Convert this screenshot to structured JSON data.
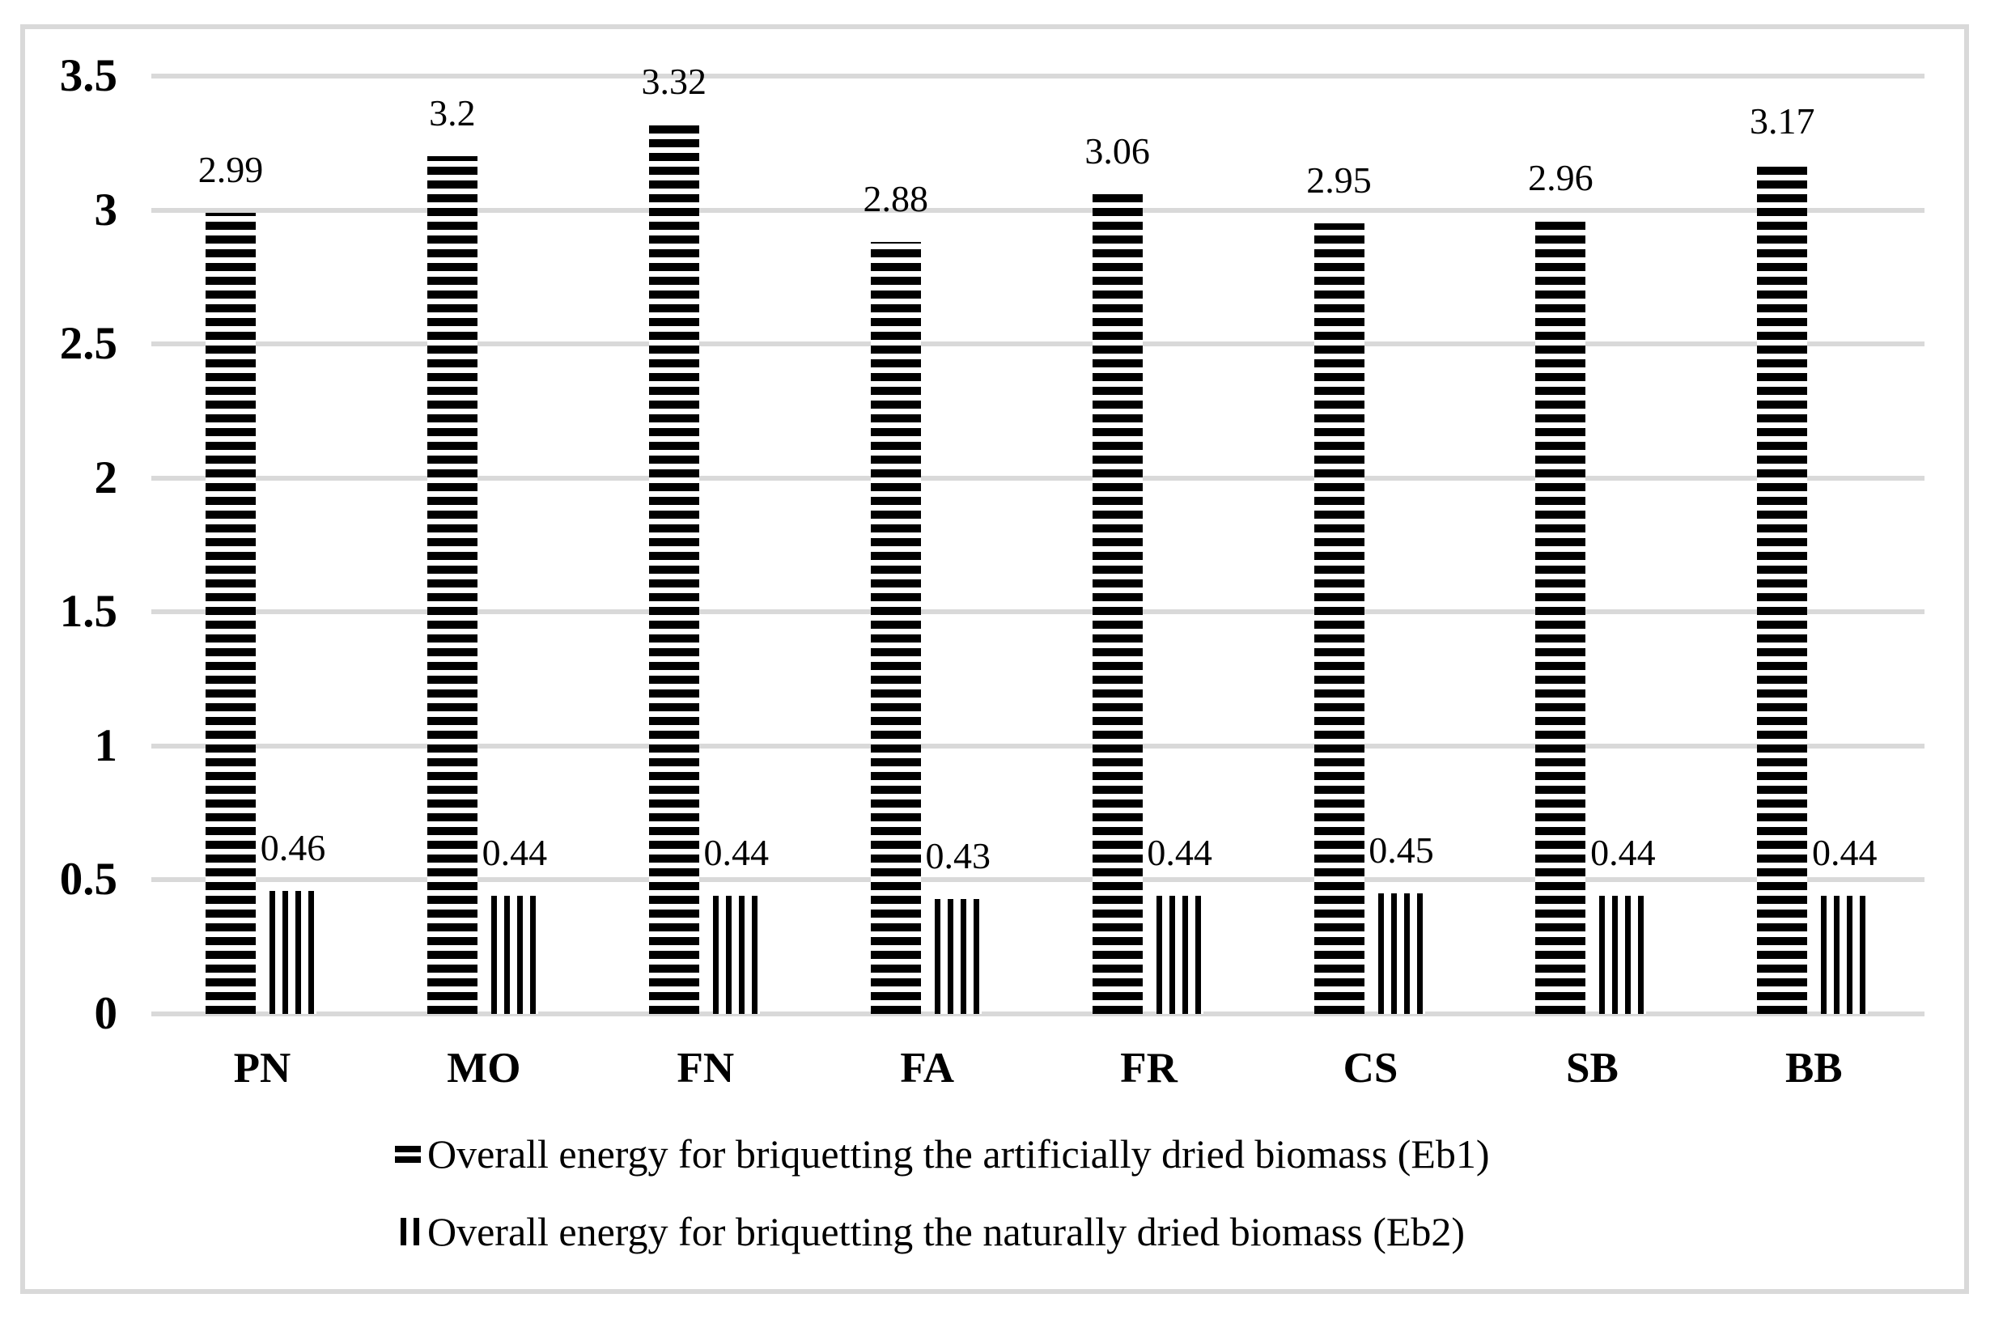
{
  "chart_data": {
    "type": "bar",
    "title": "",
    "xlabel": "",
    "ylabel": "",
    "categories": [
      "PN",
      "MO",
      "FN",
      "FA",
      "FR",
      "CS",
      "SB",
      "BB"
    ],
    "series": [
      {
        "name": "Overall energy for briquetting the artificially dried biomass (Eb1)",
        "pattern": "horizontal-stripes",
        "values": [
          2.99,
          3.2,
          3.32,
          2.88,
          3.06,
          2.95,
          2.96,
          3.17
        ],
        "labels": [
          "2.99",
          "3.2",
          "3.32",
          "2.88",
          "3.06",
          "2.95",
          "2.96",
          "3.17"
        ]
      },
      {
        "name": "Overall energy for briquetting the naturally dried biomass (Eb2)",
        "pattern": "vertical-stripes",
        "values": [
          0.46,
          0.44,
          0.44,
          0.43,
          0.44,
          0.45,
          0.44,
          0.44
        ],
        "labels": [
          "0.46",
          "0.44",
          "0.44",
          "0.43",
          "0.44",
          "0.45",
          "0.44",
          "0.44"
        ]
      }
    ],
    "y_axis": {
      "min": 0,
      "max": 3.5,
      "tick_interval": 0.5,
      "tick_labels": [
        "0",
        "0.5",
        "1",
        "1.5",
        "2",
        "2.5",
        "3",
        "3.5"
      ]
    },
    "grid": true,
    "legend_position": "bottom",
    "colors": {
      "bar": "#000000",
      "gridline": "#d9d9d9",
      "frame_border": "#d9d9d9",
      "background": "#ffffff",
      "text": "#000000"
    }
  }
}
